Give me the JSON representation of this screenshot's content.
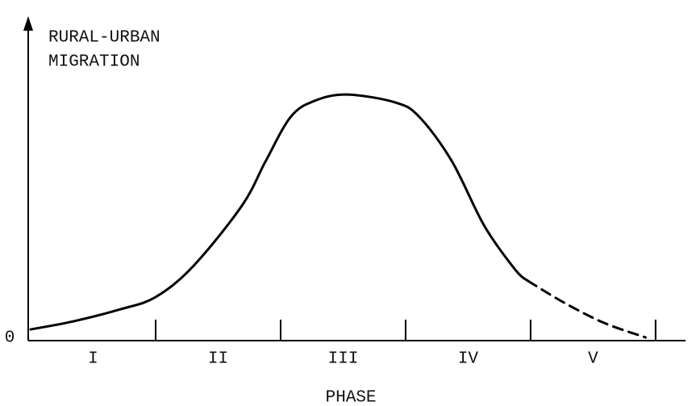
{
  "chart_data": {
    "type": "line",
    "ylabel": [
      "RURAL-URBAN",
      "MIGRATION"
    ],
    "xlabel": "PHASE",
    "categories": [
      "I",
      "II",
      "III",
      "IV",
      "V"
    ],
    "xlim": [
      0,
      5.24
    ],
    "xticks": [
      1,
      2,
      3,
      4,
      5
    ],
    "ylim": [
      0,
      100
    ],
    "yticks": [
      0
    ],
    "color": "#000000",
    "series": [
      {
        "style": "solid",
        "x": [
          0,
          0.34,
          0.72,
          1.0,
          1.3,
          1.69,
          1.88,
          2.08,
          2.27,
          2.53,
          2.92,
          3.11,
          3.37,
          3.63,
          3.88,
          3.98
        ],
        "values": [
          3.5,
          6,
          9.8,
          13.6,
          23.2,
          42.1,
          56,
          69.8,
          74.8,
          76.8,
          74.3,
          69.8,
          56,
          35.8,
          22,
          18.6
        ]
      },
      {
        "style": "dashed",
        "x": [
          3.98,
          4.27,
          4.59,
          4.92
        ],
        "values": [
          18.6,
          11.8,
          5.5,
          1
        ]
      }
    ]
  }
}
